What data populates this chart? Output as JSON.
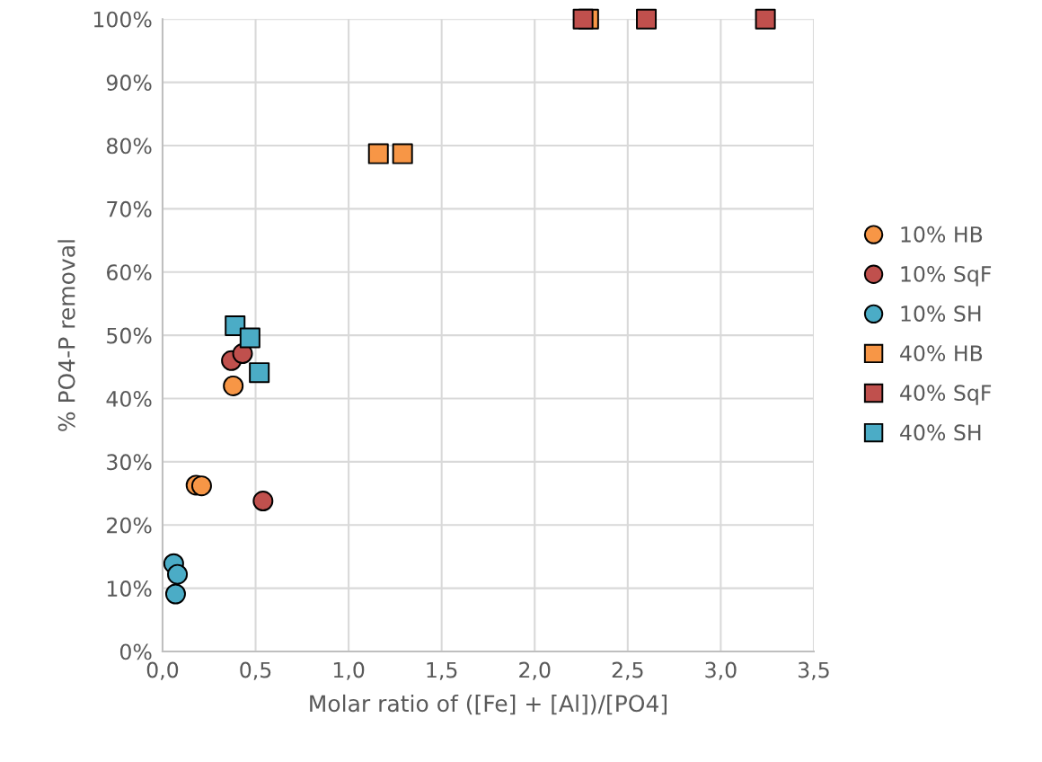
{
  "chart_data": {
    "type": "scatter",
    "xlabel": "Molar ratio of ([Fe] + [Al])/[PO4]",
    "ylabel": "% PO4-P removal",
    "series": [
      {
        "name": "10% HB",
        "color": "#f79646",
        "marker": "circle",
        "x": [
          0.18,
          0.21,
          0.38
        ],
        "values": [
          26.3,
          26.2,
          42.0
        ]
      },
      {
        "name": "10% SqF",
        "color": "#c0504d",
        "marker": "circle",
        "x": [
          0.37,
          0.43,
          0.54
        ],
        "values": [
          46.0,
          47.1,
          23.8
        ]
      },
      {
        "name": "10% SH",
        "color": "#4bacc6",
        "marker": "circle",
        "x": [
          0.06,
          0.08,
          0.07
        ],
        "values": [
          13.9,
          12.2,
          9.1
        ]
      },
      {
        "name": "40% HB",
        "color": "#f79646",
        "marker": "square",
        "x": [
          1.16,
          1.29,
          2.29
        ],
        "values": [
          78.7,
          78.7,
          100
        ]
      },
      {
        "name": "40% SqF",
        "color": "#c0504d",
        "marker": "square",
        "x": [
          2.26,
          2.6,
          3.24
        ],
        "values": [
          100,
          100,
          100
        ]
      },
      {
        "name": "40% SH",
        "color": "#4bacc6",
        "marker": "square",
        "x": [
          0.39,
          0.47,
          0.52
        ],
        "values": [
          51.5,
          49.6,
          44.1
        ]
      }
    ],
    "xlim": [
      0,
      3.5
    ],
    "xticks": [
      {
        "value": 0,
        "label": "0,0"
      },
      {
        "value": 0.5,
        "label": "0,5"
      },
      {
        "value": 1,
        "label": "1,0"
      },
      {
        "value": 1.5,
        "label": "1,5"
      },
      {
        "value": 2,
        "label": "2,0"
      },
      {
        "value": 2.5,
        "label": "2,5"
      },
      {
        "value": 3,
        "label": "3,0"
      },
      {
        "value": 3.5,
        "label": "3,5"
      }
    ],
    "ylim": [
      0,
      100
    ],
    "yticks": [
      {
        "value": 0,
        "label": "0%"
      },
      {
        "value": 10,
        "label": "10%"
      },
      {
        "value": 20,
        "label": "20%"
      },
      {
        "value": 30,
        "label": "30%"
      },
      {
        "value": 40,
        "label": "40%"
      },
      {
        "value": 50,
        "label": "50%"
      },
      {
        "value": 60,
        "label": "60%"
      },
      {
        "value": 70,
        "label": "70%"
      },
      {
        "value": 80,
        "label": "80%"
      },
      {
        "value": 90,
        "label": "90%"
      },
      {
        "value": 100,
        "label": "100%"
      }
    ],
    "grid": true,
    "legend": "right"
  }
}
